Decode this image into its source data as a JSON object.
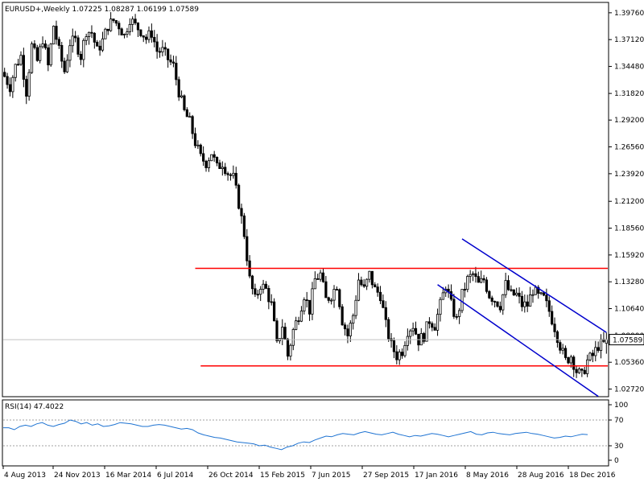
{
  "chart_data": [
    {
      "type": "candlestick",
      "title": "EURUSD+,Weekly  1.07225 1.08287 1.06199 1.07589",
      "symbol": "EURUSD+",
      "timeframe": "Weekly",
      "ohlc_last": {
        "open": 1.07225,
        "high": 1.08287,
        "low": 1.06199,
        "close": 1.07589
      },
      "current_price_label": "1.07589",
      "y_ticks": [
        "1.39760",
        "1.37120",
        "1.34480",
        "1.31820",
        "1.29200",
        "1.26560",
        "1.23920",
        "1.21200",
        "1.18560",
        "1.15920",
        "1.13280",
        "1.10640",
        "1.08000",
        "1.05360",
        "1.02720"
      ],
      "x_ticks": [
        "4 Aug 2013",
        "24 Nov 2013",
        "16 Mar 2014",
        "6 Jul 2014",
        "26 Oct 2014",
        "15 Feb 2015",
        "7 Jun 2015",
        "27 Sep 2015",
        "17 Jan 2016",
        "8 May 2016",
        "28 Aug 2016",
        "18 Dec 2016"
      ],
      "ylim": [
        1.0205,
        1.407
      ],
      "close_path": [
        [
          0,
          1.335
        ],
        [
          2,
          1.325
        ],
        [
          4,
          1.345
        ],
        [
          6,
          1.355
        ],
        [
          8,
          1.32
        ],
        [
          10,
          1.365
        ],
        [
          12,
          1.35
        ],
        [
          14,
          1.372
        ],
        [
          16,
          1.345
        ],
        [
          18,
          1.385
        ],
        [
          20,
          1.36
        ],
        [
          22,
          1.34
        ],
        [
          24,
          1.368
        ],
        [
          26,
          1.37
        ],
        [
          28,
          1.355
        ],
        [
          30,
          1.38
        ],
        [
          32,
          1.378
        ],
        [
          34,
          1.36
        ],
        [
          36,
          1.37
        ],
        [
          38,
          1.385
        ],
        [
          40,
          1.39
        ],
        [
          42,
          1.385
        ],
        [
          44,
          1.375
        ],
        [
          46,
          1.392
        ],
        [
          48,
          1.385
        ],
        [
          50,
          1.38
        ],
        [
          52,
          1.372
        ],
        [
          54,
          1.378
        ],
        [
          56,
          1.36
        ],
        [
          58,
          1.36
        ],
        [
          60,
          1.352
        ],
        [
          62,
          1.345
        ],
        [
          64,
          1.32
        ],
        [
          66,
          1.3
        ],
        [
          68,
          1.29
        ],
        [
          70,
          1.27
        ],
        [
          72,
          1.255
        ],
        [
          74,
          1.25
        ],
        [
          76,
          1.26
        ],
        [
          78,
          1.245
        ],
        [
          80,
          1.25
        ],
        [
          82,
          1.24
        ],
        [
          84,
          1.235
        ],
        [
          86,
          1.21
        ],
        [
          88,
          1.18
        ],
        [
          90,
          1.135
        ],
        [
          92,
          1.115
        ],
        [
          94,
          1.13
        ],
        [
          96,
          1.125
        ],
        [
          98,
          1.11
        ],
        [
          100,
          1.07
        ],
        [
          102,
          1.09
        ],
        [
          104,
          1.06
        ],
        [
          106,
          1.085
        ],
        [
          108,
          1.1
        ],
        [
          110,
          1.12
        ],
        [
          112,
          1.105
        ],
        [
          114,
          1.135
        ],
        [
          116,
          1.14
        ],
        [
          118,
          1.115
        ],
        [
          120,
          1.12
        ],
        [
          122,
          1.13
        ],
        [
          124,
          1.095
        ],
        [
          126,
          1.08
        ],
        [
          128,
          1.1
        ],
        [
          130,
          1.135
        ],
        [
          132,
          1.125
        ],
        [
          134,
          1.14
        ],
        [
          136,
          1.125
        ],
        [
          138,
          1.12
        ],
        [
          140,
          1.09
        ],
        [
          142,
          1.07
        ],
        [
          144,
          1.06
        ],
        [
          146,
          1.065
        ],
        [
          148,
          1.085
        ],
        [
          150,
          1.09
        ],
        [
          152,
          1.075
        ],
        [
          154,
          1.08
        ],
        [
          156,
          1.095
        ],
        [
          158,
          1.09
        ],
        [
          160,
          1.11
        ],
        [
          162,
          1.13
        ],
        [
          164,
          1.11
        ],
        [
          166,
          1.095
        ],
        [
          168,
          1.12
        ],
        [
          170,
          1.135
        ],
        [
          172,
          1.14
        ],
        [
          174,
          1.13
        ],
        [
          176,
          1.135
        ],
        [
          178,
          1.12
        ],
        [
          180,
          1.115
        ],
        [
          182,
          1.11
        ],
        [
          184,
          1.13
        ],
        [
          186,
          1.12
        ],
        [
          188,
          1.12
        ],
        [
          190,
          1.11
        ],
        [
          192,
          1.11
        ],
        [
          194,
          1.125
        ],
        [
          196,
          1.118
        ],
        [
          198,
          1.116
        ],
        [
          200,
          1.104
        ],
        [
          202,
          1.088
        ],
        [
          204,
          1.07
        ],
        [
          206,
          1.055
        ],
        [
          208,
          1.06
        ],
        [
          210,
          1.045
        ],
        [
          212,
          1.04
        ],
        [
          214,
          1.055
        ],
        [
          216,
          1.06
        ],
        [
          218,
          1.07
        ],
        [
          220,
          1.072
        ],
        [
          221,
          1.07589
        ]
      ],
      "red_lines": [
        {
          "x1": 70,
          "x2": 221,
          "y": 1.146
        },
        {
          "x1": 72,
          "x2": 221,
          "y": 1.05
        }
      ],
      "blue_channel": [
        {
          "x1": 168,
          "y1": 1.175,
          "x2": 221,
          "y2": 1.083
        },
        {
          "x1": 159,
          "y1": 1.13,
          "x2": 218,
          "y2": 1.02
        }
      ]
    },
    {
      "type": "line",
      "title": "RSI(14) 47.4022",
      "indicator": "RSI(14)",
      "value_label": "47.4022",
      "y_ticks": [
        "100",
        "70",
        "30",
        "0"
      ],
      "ylim": [
        0,
        100
      ],
      "levels": [
        70,
        30
      ],
      "values": [
        58,
        58,
        55,
        60,
        62,
        60,
        64,
        66,
        62,
        60,
        63,
        65,
        70,
        68,
        64,
        66,
        62,
        64,
        60,
        61,
        63,
        66,
        65,
        64,
        62,
        60,
        60,
        62,
        63,
        62,
        60,
        58,
        56,
        57,
        55,
        50,
        47,
        45,
        43,
        42,
        40,
        38,
        36,
        35,
        34,
        33,
        30,
        31,
        28,
        26,
        24,
        28,
        30,
        34,
        36,
        35,
        39,
        42,
        45,
        44,
        47,
        49,
        48,
        47,
        50,
        52,
        50,
        48,
        47,
        49,
        51,
        48,
        46,
        44,
        46,
        45,
        47,
        49,
        48,
        46,
        44,
        46,
        48,
        50,
        52,
        48,
        47,
        50,
        51,
        49,
        48,
        47,
        49,
        50,
        51,
        49,
        48,
        46,
        44,
        42,
        43,
        45,
        44,
        46,
        48,
        47.4022
      ]
    }
  ]
}
